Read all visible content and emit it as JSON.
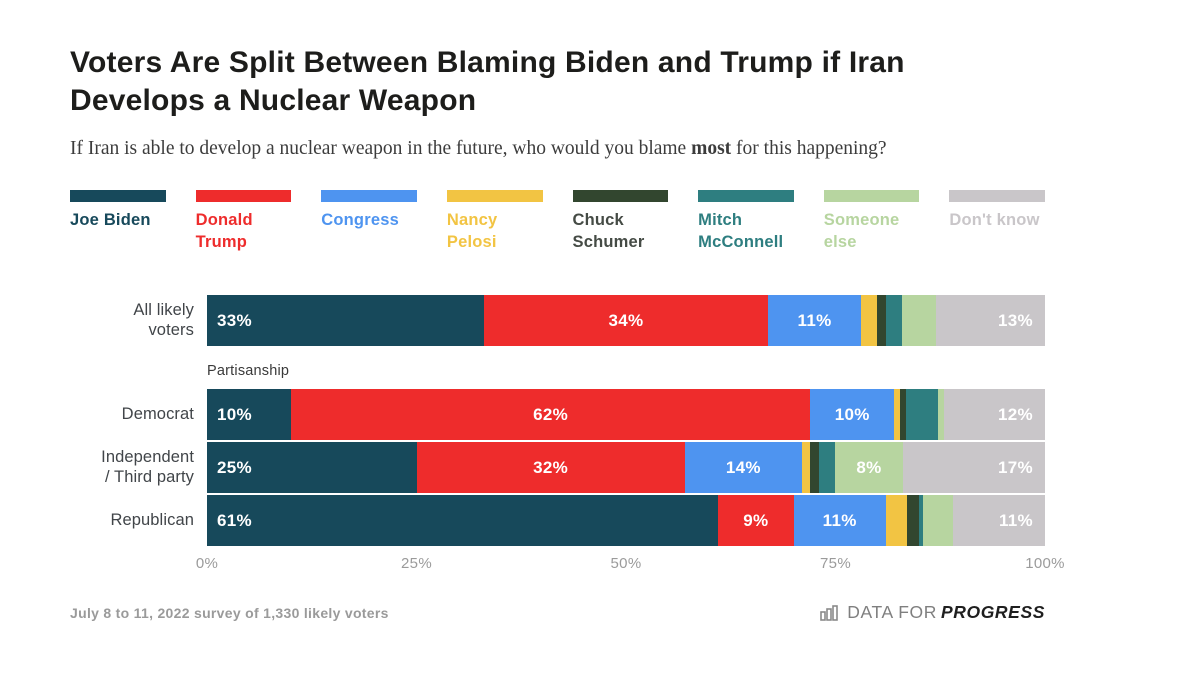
{
  "page": {
    "title": "Voters Are Split Between Blaming Biden and Trump if Iran Develops a Nuclear Weapon",
    "subtitle_pre": "If Iran is able to develop a nuclear weapon in the future, who would you blame ",
    "subtitle_bold": "most",
    "subtitle_post": " for this happening?",
    "footnote": "July 8 to 11, 2022 survey of 1,330 likely voters",
    "logo": {
      "icon": "bar-chart-icon",
      "prefix": "DATA FOR",
      "suffix": "PROGRESS"
    }
  },
  "colors": {
    "joe_biden": "#17495B",
    "donald_trump": "#EE2C2C",
    "congress": "#4E94F0",
    "nancy_pelosi": "#F2C443",
    "chuck_schumer": "#32462F",
    "mitch_mcconnell": "#2E7E80",
    "someone_else": "#B7D5A0",
    "dont_know": "#C9C6C9"
  },
  "chart_data": {
    "type": "bar",
    "variant": "horizontal-stacked-100",
    "xlim": [
      0,
      100
    ],
    "x_ticks": [
      "0%",
      "25%",
      "50%",
      "75%",
      "100%"
    ],
    "grid": false,
    "legend_position": "top",
    "group_label": "Partisanship",
    "legend": [
      {
        "name": "Joe Biden",
        "color": "#17495B",
        "text_color": "#17495B"
      },
      {
        "name": "Donald Trump",
        "color": "#EE2C2C",
        "text_color": "#EE2C2C"
      },
      {
        "name": "Congress",
        "color": "#4E94F0",
        "text_color": "#4E94F0"
      },
      {
        "name": "Nancy Pelosi",
        "color": "#F2C443",
        "text_color": "#F2C443"
      },
      {
        "name": "Chuck Schumer",
        "color": "#32462F",
        "text_color": "#454B45"
      },
      {
        "name": "Mitch McConnell",
        "color": "#2E7E80",
        "text_color": "#2E7E80"
      },
      {
        "name": "Someone else",
        "color": "#B7D5A0",
        "text_color": "#B7D5A0"
      },
      {
        "name": "Don't know",
        "color": "#C9C6C9",
        "text_color": "#C9C6C9"
      }
    ],
    "categories": [
      "All likely voters",
      "Democrat",
      "Independent / Third party",
      "Republican"
    ],
    "rows": [
      {
        "category": "All likely\nvoters",
        "group": null,
        "segments": [
          {
            "value": 33,
            "label": "33%"
          },
          {
            "value": 34,
            "label": "34%"
          },
          {
            "value": 11,
            "label": "11%"
          },
          {
            "value": 2,
            "label": ""
          },
          {
            "value": 1,
            "label": ""
          },
          {
            "value": 2,
            "label": ""
          },
          {
            "value": 4,
            "label": ""
          },
          {
            "value": 13,
            "label": "13%"
          }
        ]
      },
      {
        "category": "Democrat",
        "group": "Partisanship",
        "segments": [
          {
            "value": 10,
            "label": "10%"
          },
          {
            "value": 62,
            "label": "62%"
          },
          {
            "value": 10,
            "label": "10%"
          },
          {
            "value": 0.7,
            "label": ""
          },
          {
            "value": 0.7,
            "label": ""
          },
          {
            "value": 3.8,
            "label": ""
          },
          {
            "value": 0.8,
            "label": ""
          },
          {
            "value": 12,
            "label": "12%"
          }
        ]
      },
      {
        "category": "Independent\n/ Third party",
        "group": "Partisanship",
        "segments": [
          {
            "value": 25,
            "label": "25%"
          },
          {
            "value": 32,
            "label": "32%"
          },
          {
            "value": 14,
            "label": "14%"
          },
          {
            "value": 1,
            "label": ""
          },
          {
            "value": 1,
            "label": ""
          },
          {
            "value": 2,
            "label": ""
          },
          {
            "value": 8,
            "label": "8%"
          },
          {
            "value": 17,
            "label": "17%"
          }
        ]
      },
      {
        "category": "Republican",
        "group": "Partisanship",
        "segments": [
          {
            "value": 61,
            "label": "61%"
          },
          {
            "value": 9,
            "label": "9%"
          },
          {
            "value": 11,
            "label": "11%"
          },
          {
            "value": 2.5,
            "label": ""
          },
          {
            "value": 1.5,
            "label": ""
          },
          {
            "value": 0.5,
            "label": ""
          },
          {
            "value": 3.5,
            "label": ""
          },
          {
            "value": 11,
            "label": "11%"
          }
        ]
      }
    ]
  }
}
